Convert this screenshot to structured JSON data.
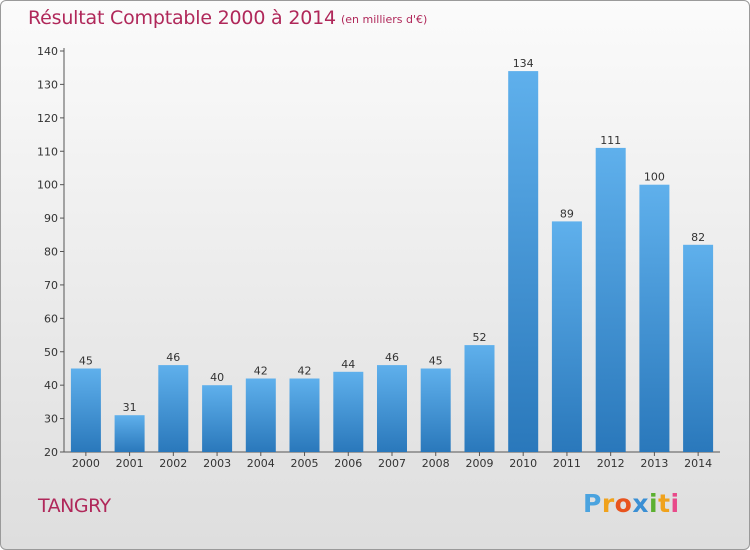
{
  "header": {
    "title": "Résultat Comptable 2000 à 2014",
    "unit": "(en milliers d'€)"
  },
  "footer": {
    "commune": "TANGRY",
    "logo_letters": [
      "P",
      "r",
      "o",
      "x",
      "i",
      "t",
      "i"
    ],
    "logo_colors": [
      "#4aa3df",
      "#f0a21c",
      "#e8541e",
      "#3a8fd4",
      "#5cb030",
      "#f0a21c",
      "#e84a8a"
    ]
  },
  "colors": {
    "bar_top": "#5fb0ec",
    "bar_bottom": "#2a78bb",
    "title": "#b0285a"
  },
  "chart_data": {
    "type": "bar",
    "title": "Résultat Comptable 2000 à 2014",
    "subtitle": "(en milliers d'€)",
    "xlabel": "",
    "ylabel": "",
    "categories": [
      "2000",
      "2001",
      "2002",
      "2003",
      "2004",
      "2005",
      "2006",
      "2007",
      "2008",
      "2009",
      "2010",
      "2011",
      "2012",
      "2013",
      "2014"
    ],
    "values": [
      45,
      31,
      46,
      40,
      42,
      42,
      44,
      46,
      45,
      52,
      134,
      89,
      111,
      100,
      82
    ],
    "ylim": [
      20,
      140
    ],
    "yticks": [
      20,
      30,
      40,
      50,
      60,
      70,
      80,
      90,
      100,
      110,
      120,
      130,
      140
    ],
    "grid": false,
    "legend": "none"
  }
}
